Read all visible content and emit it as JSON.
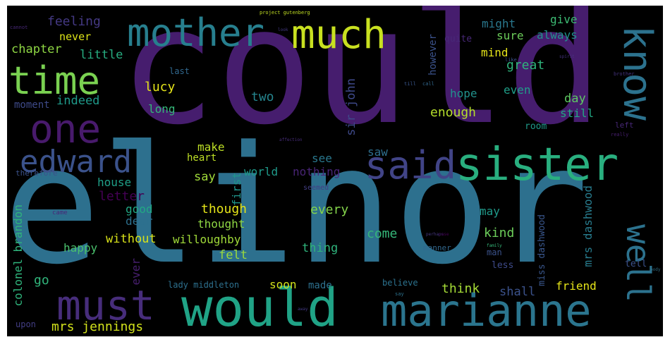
{
  "words": [
    {
      "text": "could",
      "color": "#461d6e"
    },
    {
      "text": "elinor",
      "color": "#2d708e"
    },
    {
      "text": "would",
      "color": "#20a386"
    },
    {
      "text": "marianne",
      "color": "#2b758e"
    },
    {
      "text": "sister",
      "color": "#29af7f"
    },
    {
      "text": "said",
      "color": "#414487"
    },
    {
      "text": "mother",
      "color": "#277f8e"
    },
    {
      "text": "much",
      "color": "#c8e020"
    },
    {
      "text": "time",
      "color": "#7ad151"
    },
    {
      "text": "one",
      "color": "#481a6c"
    },
    {
      "text": "edward",
      "color": "#3b528b"
    },
    {
      "text": "must",
      "color": "#472d7b"
    },
    {
      "text": "know",
      "color": "#2c728e"
    },
    {
      "text": "well",
      "color": "#2c728e"
    },
    {
      "text": "mrs jennings",
      "color": "#d2e21b"
    },
    {
      "text": "feeling",
      "color": "#443983"
    },
    {
      "text": "never",
      "color": "#dde318"
    },
    {
      "text": "chapter",
      "color": "#8fd744"
    },
    {
      "text": "little",
      "color": "#27ad81"
    },
    {
      "text": "moment",
      "color": "#3e4a89"
    },
    {
      "text": "indeed",
      "color": "#1f9a8a"
    },
    {
      "text": "lucy",
      "color": "#e5e419"
    },
    {
      "text": "long",
      "color": "#35b779"
    },
    {
      "text": "two",
      "color": "#25858e"
    },
    {
      "text": "hope",
      "color": "#21918c"
    },
    {
      "text": "might",
      "color": "#2a788e"
    },
    {
      "text": "sure",
      "color": "#6ccd5a"
    },
    {
      "text": "give",
      "color": "#3dbc74"
    },
    {
      "text": "always",
      "color": "#21918c"
    },
    {
      "text": "mind",
      "color": "#e5e419"
    },
    {
      "text": "great",
      "color": "#2fb47c"
    },
    {
      "text": "however",
      "color": "#3b528b"
    },
    {
      "text": "quite",
      "color": "#482878"
    },
    {
      "text": "last",
      "color": "#31688e"
    },
    {
      "text": "even",
      "color": "#1f9e89"
    },
    {
      "text": "day",
      "color": "#5ec962"
    },
    {
      "text": "enough",
      "color": "#b5de2b"
    },
    {
      "text": "still",
      "color": "#22a884"
    },
    {
      "text": "sir john",
      "color": "#3e4989"
    },
    {
      "text": "make",
      "color": "#bddf26"
    },
    {
      "text": "heart",
      "color": "#bddf26"
    },
    {
      "text": "say",
      "color": "#a0da39"
    },
    {
      "text": "see",
      "color": "#2a788e"
    },
    {
      "text": "saw",
      "color": "#2e6e8e"
    },
    {
      "text": "first",
      "color": "#1f958b"
    },
    {
      "text": "world",
      "color": "#1f9a8a"
    },
    {
      "text": "nothing",
      "color": "#482475"
    },
    {
      "text": "mrs dashwood",
      "color": "#287c8e"
    },
    {
      "text": "house",
      "color": "#1fa088"
    },
    {
      "text": "letter",
      "color": "#440154"
    },
    {
      "text": "good",
      "color": "#22a884"
    },
    {
      "text": "dear",
      "color": "#2d708e"
    },
    {
      "text": "happy",
      "color": "#4ac16d"
    },
    {
      "text": "without",
      "color": "#d8e219"
    },
    {
      "text": "willoughby",
      "color": "#a0da39"
    },
    {
      "text": "thought",
      "color": "#8fd744"
    },
    {
      "text": "though",
      "color": "#e5e419"
    },
    {
      "text": "every",
      "color": "#84d44b"
    },
    {
      "text": "may",
      "color": "#1f9a8a"
    },
    {
      "text": "kind",
      "color": "#6ccd5a"
    },
    {
      "text": "come",
      "color": "#35b779"
    },
    {
      "text": "thing",
      "color": "#2fb47c"
    },
    {
      "text": "felt",
      "color": "#9bd93c"
    },
    {
      "text": "colonel brandon",
      "color": "#2fb47c"
    },
    {
      "text": "ever",
      "color": "#481f70"
    },
    {
      "text": "go",
      "color": "#31b57b"
    },
    {
      "text": "soon",
      "color": "#d2e21b"
    },
    {
      "text": "made",
      "color": "#2d708e"
    },
    {
      "text": "think",
      "color": "#a5db36"
    },
    {
      "text": "shall",
      "color": "#3b528b"
    },
    {
      "text": "friend",
      "color": "#e5e419"
    },
    {
      "text": "believe",
      "color": "#2c728e"
    },
    {
      "text": "lady middleton",
      "color": "#2d708e"
    },
    {
      "text": "upon",
      "color": "#433e85"
    },
    {
      "text": "less",
      "color": "#3e4a89"
    },
    {
      "text": "man",
      "color": "#3b528b"
    },
    {
      "text": "miss dashwood",
      "color": "#39568c"
    },
    {
      "text": "tell",
      "color": "#3b528b"
    },
    {
      "text": "room",
      "color": "#1f9a8a"
    },
    {
      "text": "left",
      "color": "#482878"
    },
    {
      "text": "therefore",
      "color": "#3b528b"
    },
    {
      "text": "seemed",
      "color": "#433e85"
    },
    {
      "text": "manner",
      "color": "#31688e"
    },
    {
      "text": "came",
      "color": "#482878"
    },
    {
      "text": "project gutenberg",
      "color": "#c2df23"
    },
    {
      "text": "cannot",
      "color": "#482878"
    },
    {
      "text": "look",
      "color": "#443983"
    },
    {
      "text": "like",
      "color": "#3b528b"
    },
    {
      "text": "brother",
      "color": "#463480"
    },
    {
      "text": "spirit",
      "color": "#46327e"
    },
    {
      "text": "affection",
      "color": "#472c7a"
    },
    {
      "text": "really",
      "color": "#481f70"
    },
    {
      "text": "family",
      "color": "#35b779"
    },
    {
      "text": "perhaps",
      "color": "#453882"
    },
    {
      "text": "away",
      "color": "#443983"
    },
    {
      "text": "call",
      "color": "#31688e"
    },
    {
      "text": "say",
      "color": "#2c728e"
    },
    {
      "text": "body",
      "color": "#30697e"
    },
    {
      "text": "case",
      "color": "#440154"
    },
    {
      "text": "till",
      "color": "#39568c"
    }
  ]
}
